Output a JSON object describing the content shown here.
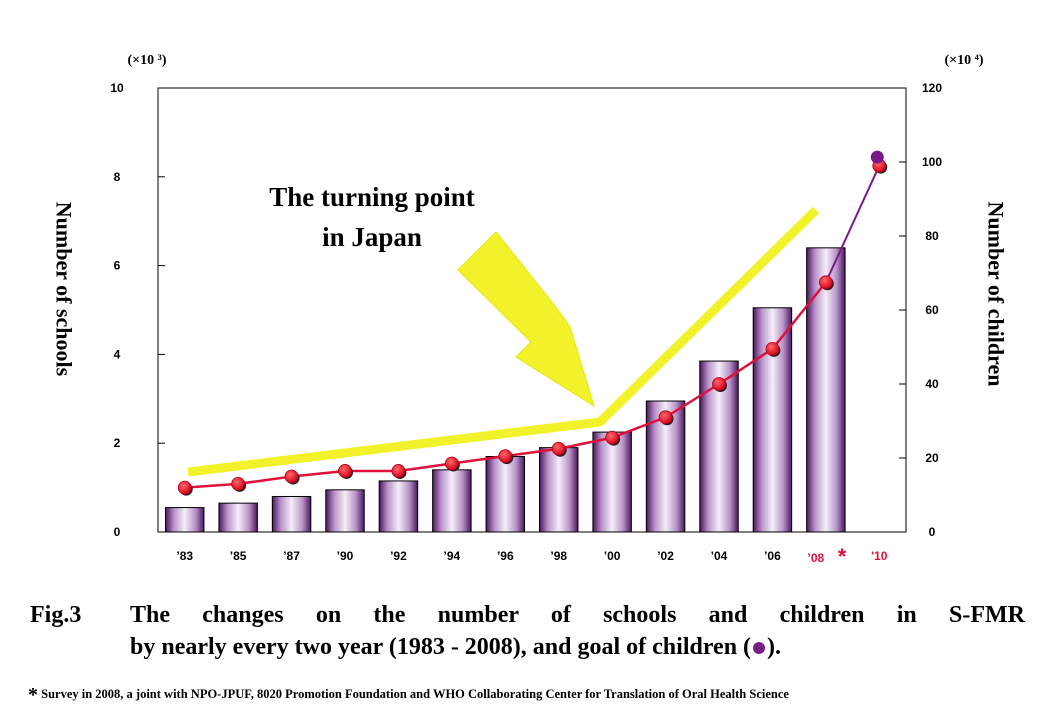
{
  "chart_data": {
    "type": "bar+line",
    "categories": [
      "’83",
      "’85",
      "’87",
      "’90",
      "’92",
      "’94",
      "’96",
      "’98",
      "’00",
      "’02",
      "’04",
      "’06",
      "’08",
      "'10"
    ],
    "series": [
      {
        "axis": "left",
        "type": "bar",
        "values": [
          0.55,
          0.65,
          0.8,
          0.95,
          1.15,
          1.4,
          1.7,
          1.9,
          2.25,
          2.95,
          3.85,
          5.05,
          6.4,
          null
        ]
      },
      {
        "axis": "right",
        "type": "line",
        "values": [
          12,
          13,
          15,
          16.5,
          16.5,
          18.5,
          20.5,
          22.5,
          25.5,
          31,
          40,
          49.5,
          67.5,
          99
        ]
      },
      {
        "axis": "right",
        "type": "goal",
        "x": "'10",
        "value": 100.5
      }
    ],
    "left_axis": {
      "label": "Number of schools",
      "multiplier": "(×10 ³)",
      "ylim": [
        0,
        10
      ],
      "ticks": [
        "0",
        "2",
        "4",
        "6",
        "8",
        "10"
      ]
    },
    "right_axis": {
      "label": "Number of children",
      "multiplier": "(×10 ⁴)",
      "ylim": [
        0,
        120
      ],
      "ticks": [
        "0",
        "20",
        "40",
        "60",
        "80",
        "100",
        "120"
      ]
    },
    "annotation": {
      "line1": "The turning point",
      "line2": "in Japan"
    },
    "survey_marker": "*",
    "colors": {
      "bar_fill": "#d9c2e3",
      "bar_dark": "#5a1e6e",
      "line": "#e0103a",
      "goal": "#7a1a8a",
      "arrow": "#f2f22a"
    }
  },
  "caption": {
    "label": "Fig.3",
    "line1": "The changes on the number of schools and children in S-FMR",
    "line2_before": "by nearly every two year (1983 - 2008), and goal of children (",
    "line2_after": ").",
    "footnote_star": "*",
    "footnote": "Survey in 2008, a joint with NPO-JPUF, 8020 Promotion Foundation and WHO Collaborating Center for Translation of Oral Health Science"
  }
}
